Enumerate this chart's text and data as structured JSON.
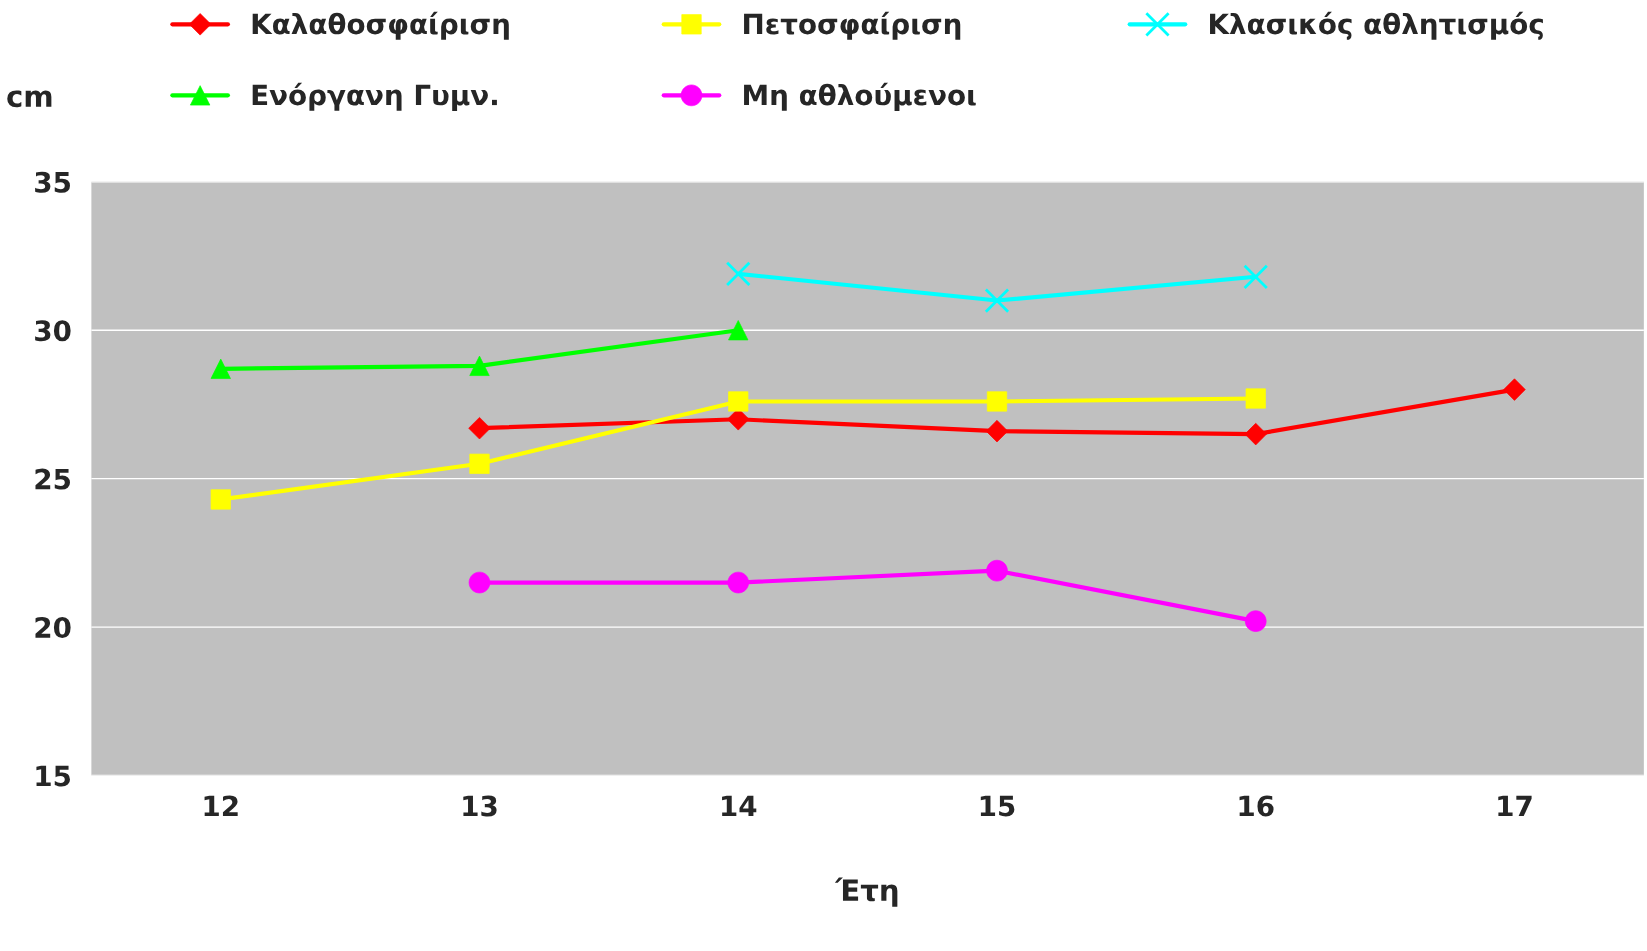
{
  "chart_data": {
    "type": "line",
    "xlabel": "Έτη",
    "ylabel": "cm",
    "categories": [
      "12",
      "13",
      "14",
      "15",
      "16",
      "17"
    ],
    "ylim": [
      15,
      35
    ],
    "yticks": [
      15,
      20,
      25,
      30,
      35
    ],
    "grid": "y",
    "legend": "top",
    "series": [
      {
        "name": "Καλαθοσφαίριση",
        "color": "#ff0000",
        "marker": "diamond",
        "values": [
          null,
          26.7,
          27.0,
          26.6,
          26.5,
          28.0
        ]
      },
      {
        "name": "Ενόργανη Γυμν.",
        "color": "#00ff00",
        "marker": "triangle",
        "values": [
          28.7,
          28.8,
          30.0,
          null,
          null,
          null
        ]
      },
      {
        "name": "Πετοσφαίριση",
        "color": "#ffff00",
        "marker": "square",
        "values": [
          24.3,
          25.5,
          27.6,
          27.6,
          27.7,
          null
        ]
      },
      {
        "name": "Μη αθλούμενοι",
        "color": "#ff00ff",
        "marker": "circle",
        "values": [
          null,
          21.5,
          21.5,
          21.9,
          20.2,
          null
        ]
      },
      {
        "name": "Κλασικός αθλητισμός",
        "color": "#00ffff",
        "marker": "cross",
        "values": [
          null,
          null,
          31.9,
          31.0,
          31.8,
          null
        ]
      }
    ]
  }
}
